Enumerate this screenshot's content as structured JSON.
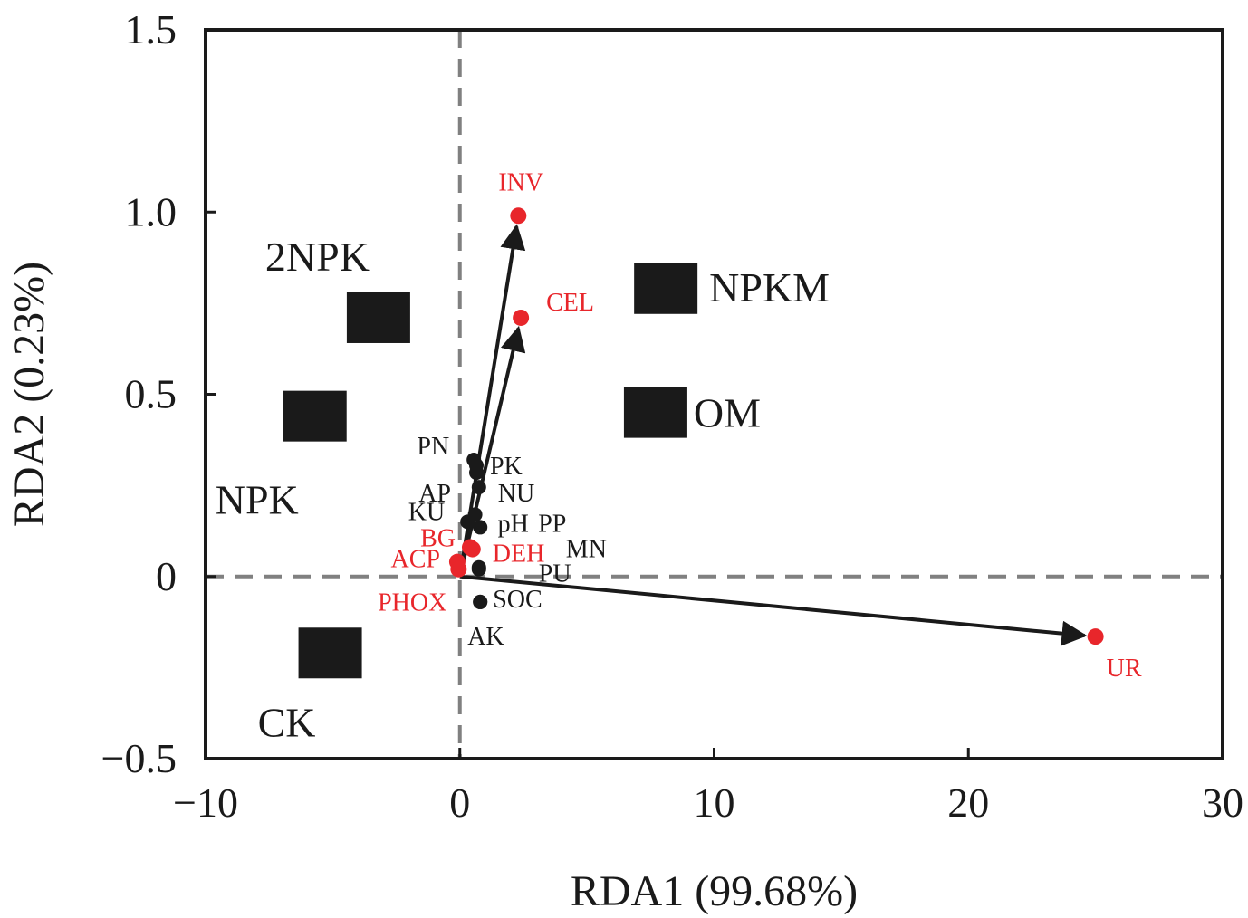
{
  "chart_data": {
    "type": "scatter",
    "xlabel": "RDA1 (99.68%)",
    "ylabel": "RDA2 (0.23%)",
    "xlim": [
      -10,
      30
    ],
    "ylim": [
      -0.5,
      1.5
    ],
    "x_ticks": [
      {
        "value": -10,
        "label": "−10"
      },
      {
        "value": 0,
        "label": "0"
      },
      {
        "value": 10,
        "label": "10"
      },
      {
        "value": 20,
        "label": "20"
      },
      {
        "value": 30,
        "label": "30"
      }
    ],
    "y_ticks": [
      {
        "value": -0.5,
        "label": "−0.5"
      },
      {
        "value": 0,
        "label": "0"
      },
      {
        "value": 0.5,
        "label": "0.5"
      },
      {
        "value": 1.0,
        "label": "1.0"
      },
      {
        "value": 1.5,
        "label": "1.5"
      }
    ],
    "reference_lines": {
      "x": 0,
      "y": 0,
      "style": "dashed",
      "color": "#808080"
    },
    "colors": {
      "marker": "#1a1a1a",
      "enzyme": "#e8262b",
      "property": "#1a1a1a",
      "axis": "#1a1a1a"
    },
    "treatments": [
      {
        "name": "2NPK",
        "x": -3.2,
        "y": 0.71
      },
      {
        "name": "NPK",
        "x": -5.7,
        "y": 0.44
      },
      {
        "name": "CK",
        "x": -5.1,
        "y": -0.21
      },
      {
        "name": "NPKM",
        "x": 8.1,
        "y": 0.79
      },
      {
        "name": "OM",
        "x": 7.7,
        "y": 0.45
      }
    ],
    "enzymes": [
      {
        "name": "INV",
        "x": 2.3,
        "y": 0.99,
        "arrow": true
      },
      {
        "name": "CEL",
        "x": 2.4,
        "y": 0.71,
        "arrow": true
      },
      {
        "name": "UR",
        "x": 25.0,
        "y": -0.165,
        "arrow": true
      },
      {
        "name": "BG",
        "x": 0.4,
        "y": 0.08
      },
      {
        "name": "DEH",
        "x": 0.5,
        "y": 0.075
      },
      {
        "name": "ACP",
        "x": -0.1,
        "y": 0.04
      },
      {
        "name": "PHOX",
        "x": -0.05,
        "y": 0.02
      }
    ],
    "properties": [
      {
        "name": "PN",
        "x": 0.55,
        "y": 0.32
      },
      {
        "name": "PK",
        "x": 0.65,
        "y": 0.305
      },
      {
        "name": "AP",
        "x": 0.65,
        "y": 0.285
      },
      {
        "name": "NU",
        "x": 0.75,
        "y": 0.245
      },
      {
        "name": "KU",
        "x": 0.3,
        "y": 0.15
      },
      {
        "name": "pH",
        "x": 0.6,
        "y": 0.17
      },
      {
        "name": "PP",
        "x": 0.8,
        "y": 0.135
      },
      {
        "name": "MN",
        "x": 0.75,
        "y": 0.025
      },
      {
        "name": "PU",
        "x": 0.75,
        "y": 0.02
      },
      {
        "name": "SOC",
        "x": 0.8,
        "y": -0.07
      },
      {
        "name": "AK",
        "x": 0.8,
        "y": -0.07
      }
    ]
  }
}
